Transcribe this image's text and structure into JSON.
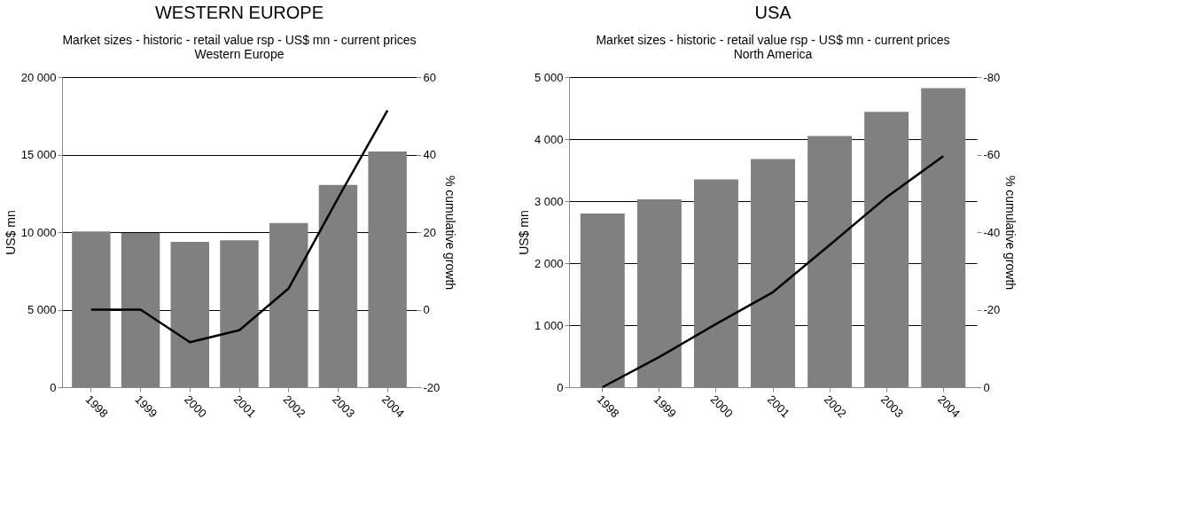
{
  "chart_data": [
    {
      "type": "bar",
      "title": "WESTERN EUROPE",
      "subtitle": "Market sizes - historic - retail value rsp - US$ mn - current prices\nWestern Europe",
      "categories": [
        "1998",
        "1999",
        "2000",
        "2001",
        "2002",
        "2003",
        "2004"
      ],
      "series": [
        {
          "color": "#808080",
          "values": [
            10050,
            9950,
            9370,
            9470,
            10580,
            13050,
            15200
          ]
        },
        {
          "type": "line",
          "axis": "y2",
          "color": "#000000",
          "values": [
            0,
            0,
            -8.4,
            -5.3,
            5.5,
            28.8,
            51.4
          ]
        }
      ],
      "ylabel": "US$ mn",
      "y2label": "% cumulative growth",
      "ylim": [
        0,
        20000
      ],
      "yticks": [
        0,
        {
          "value": 5000,
          "label": "5 000"
        },
        {
          "value": 10000,
          "label": "10 000"
        },
        {
          "value": 15000,
          "label": "15 000"
        },
        {
          "value": 20000,
          "label": "20 000"
        }
      ],
      "y2lim": [
        -20,
        60
      ],
      "y2ticks": [
        -20,
        0,
        20,
        40,
        60
      ],
      "grid": "y",
      "marker": "none",
      "line_style": "solid"
    },
    {
      "type": "bar",
      "title": "USA",
      "subtitle": "Market sizes - historic - retail value rsp - US$ mn - current prices\nNorth America",
      "categories": [
        "1998",
        "1999",
        "2000",
        "2001",
        "2002",
        "2003",
        "2004"
      ],
      "series": [
        {
          "color": "#808080",
          "values": [
            2800,
            3030,
            3350,
            3680,
            4050,
            4440,
            4820
          ]
        },
        {
          "type": "line",
          "axis": "y2",
          "color": "#000000",
          "values": [
            0,
            -7.8,
            -16.3,
            -24.5,
            -36.7,
            -49,
            -59.6
          ]
        }
      ],
      "ylabel": "US$ mn",
      "y2label": "% cumulative growth",
      "ylim": [
        0,
        5000
      ],
      "yticks": [
        0,
        {
          "value": 1000,
          "label": "1 000"
        },
        {
          "value": 2000,
          "label": "2 000"
        },
        {
          "value": 3000,
          "label": "3 000"
        },
        {
          "value": 4000,
          "label": "4 000"
        },
        {
          "value": 5000,
          "label": "5 000"
        }
      ],
      "y2lim": [
        0,
        -80
      ],
      "y2ticks": [
        0,
        -20,
        -40,
        -60,
        -80
      ],
      "grid": "y",
      "marker": "none",
      "line_style": "solid"
    }
  ]
}
